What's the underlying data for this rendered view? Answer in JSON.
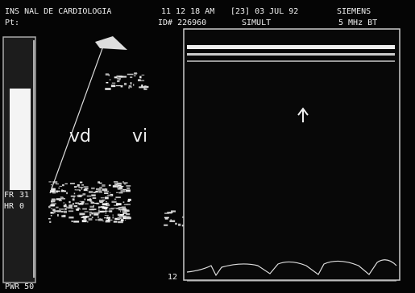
{
  "header": {
    "institution": "INS NAL DE CARDIOLOGIA",
    "patient": "Pt:",
    "time": "11 12 18 AM",
    "date": "[23] 03 JUL 92",
    "manufacturer": "SIEMENS",
    "id": "ID# 226960",
    "mode": "SIMULT",
    "probe": "5 MHz BT"
  },
  "image": {
    "label_left": "vd",
    "label_right": "vi",
    "depth_marker": "12"
  },
  "sidebar": {
    "fr_label": "FR",
    "fr_value": "31",
    "hr_label": "HR",
    "hr_value": "0",
    "power": "PWR 50"
  }
}
